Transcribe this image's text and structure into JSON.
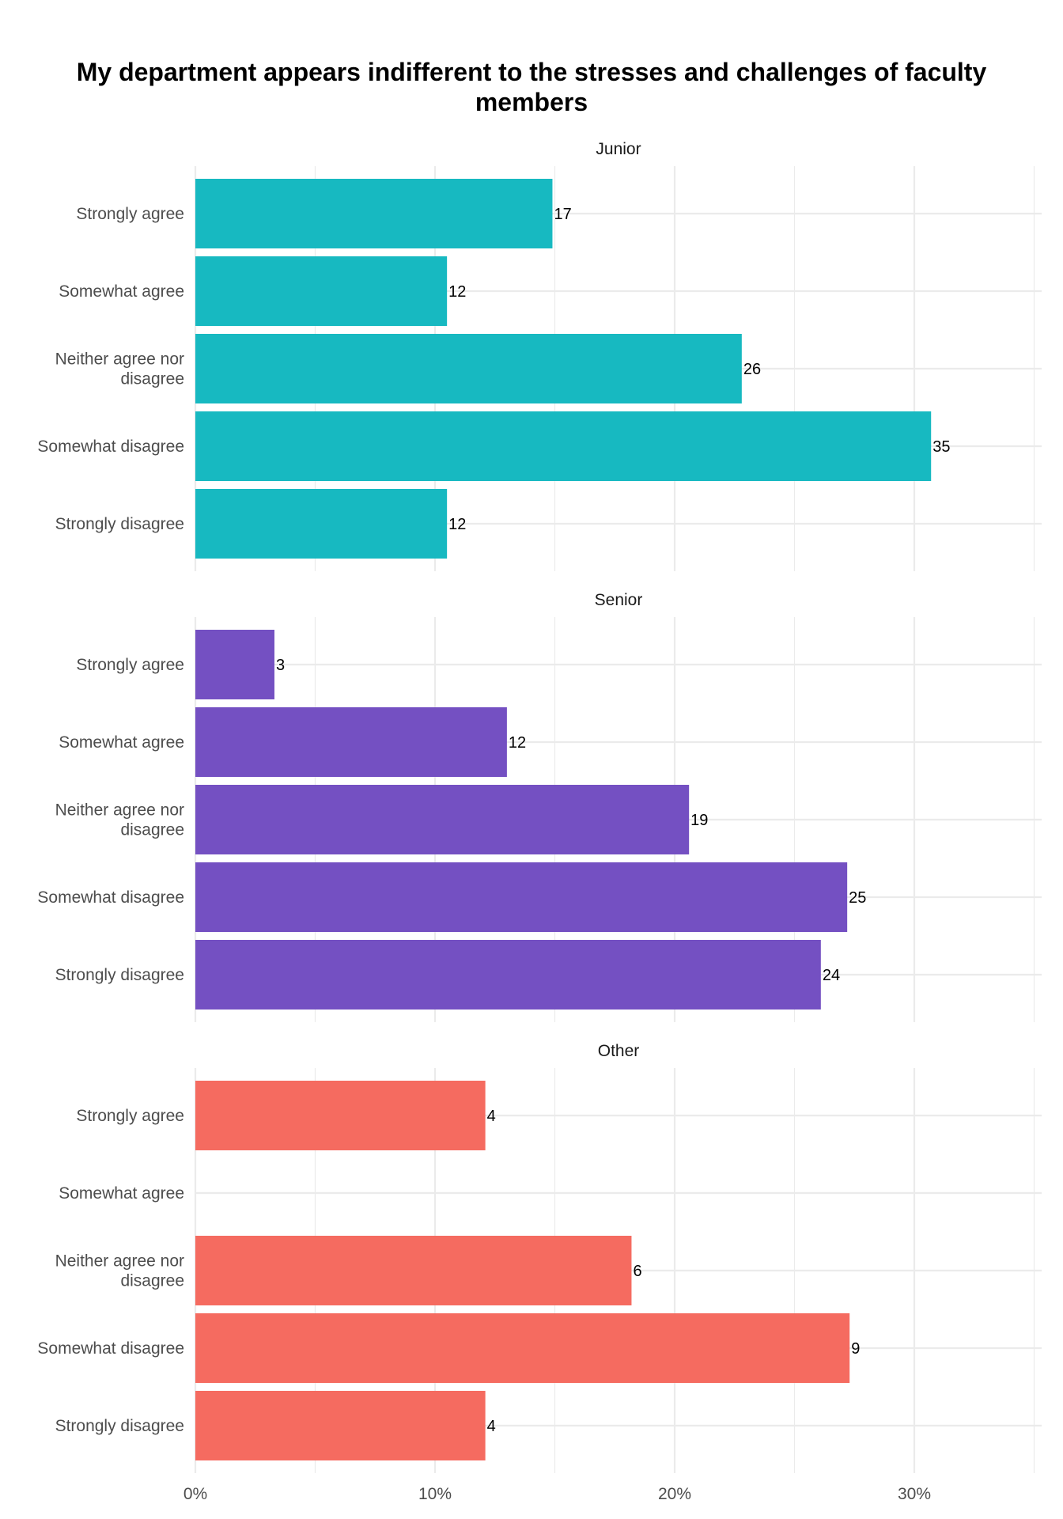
{
  "chart_data": {
    "type": "bar",
    "orientation": "horizontal",
    "title_lines": [
      "My department appears indifferent to the stresses and challenges of faculty",
      "members"
    ],
    "x_axis": {
      "min": 0,
      "max": 35,
      "ticks": [
        0,
        10,
        20,
        30
      ],
      "tick_labels": [
        "0%",
        "10%",
        "20%",
        "30%"
      ],
      "unit": "percent"
    },
    "grid": true,
    "categories": [
      "Strongly agree",
      "Somewhat agree",
      "Neither agree nor disagree",
      "Somewhat disagree",
      "Strongly disagree"
    ],
    "category_label_lines": [
      [
        "Strongly agree"
      ],
      [
        "Somewhat agree"
      ],
      [
        "Neither agree nor",
        "disagree"
      ],
      [
        "Somewhat disagree"
      ],
      [
        "Strongly disagree"
      ]
    ],
    "facets": [
      {
        "name": "Junior",
        "color": "#17b9c1",
        "percent": [
          14.9,
          10.5,
          22.8,
          30.7,
          10.5
        ],
        "counts": [
          "17",
          "12",
          "26",
          "35",
          "12"
        ]
      },
      {
        "name": "Senior",
        "color": "#7450c2",
        "percent": [
          3.3,
          13.0,
          20.6,
          27.2,
          26.1
        ],
        "counts": [
          "3",
          "12",
          "19",
          "25",
          "24"
        ]
      },
      {
        "name": "Other",
        "color": "#f56b60",
        "percent": [
          12.1,
          0,
          18.2,
          27.3,
          12.1
        ],
        "counts": [
          "4",
          "",
          "6",
          "9",
          "4"
        ]
      }
    ]
  }
}
